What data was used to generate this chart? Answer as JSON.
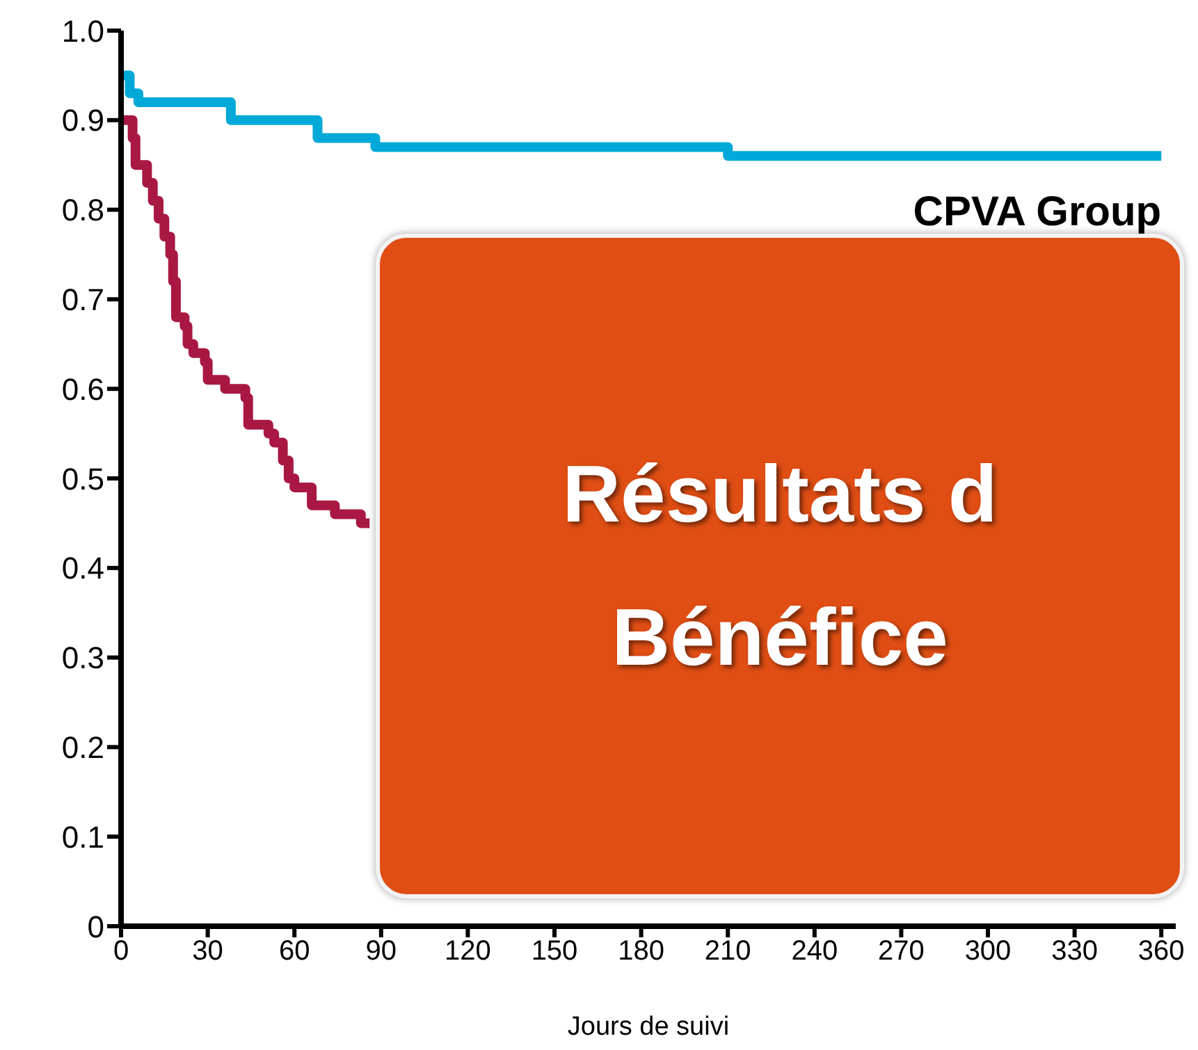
{
  "chart_data": {
    "type": "step",
    "xlabel": "Jours de suivi",
    "xlim": [
      0,
      365
    ],
    "ylim": [
      0,
      1
    ],
    "xticks": [
      0,
      30,
      60,
      90,
      120,
      150,
      180,
      210,
      240,
      270,
      300,
      330,
      360
    ],
    "yticks": [
      0,
      0.1,
      0.2,
      0.3,
      0.4,
      0.5,
      0.6,
      0.7,
      0.8,
      0.9,
      {
        "value": 1,
        "label": "1.0"
      }
    ],
    "series": [
      {
        "name": "CPVA Group",
        "color": "#00a9d8",
        "x": [
          0,
          3,
          6,
          38,
          68,
          88,
          210,
          360
        ],
        "values": [
          0.95,
          0.93,
          0.92,
          0.9,
          0.88,
          0.87,
          0.86,
          0.86
        ]
      },
      {
        "color": "#a81843",
        "x": [
          0,
          4,
          5,
          9,
          11,
          13,
          15,
          17,
          18,
          19,
          22,
          23,
          25,
          29,
          30,
          36,
          43,
          44,
          51,
          53,
          56,
          58,
          60,
          66,
          74,
          83,
          86
        ],
        "values": [
          0.9,
          0.88,
          0.85,
          0.83,
          0.81,
          0.79,
          0.77,
          0.75,
          0.72,
          0.68,
          0.67,
          0.65,
          0.64,
          0.63,
          0.61,
          0.6,
          0.59,
          0.56,
          0.55,
          0.54,
          0.52,
          0.5,
          0.49,
          0.47,
          0.46,
          0.45,
          0.45
        ]
      }
    ],
    "annotations": [
      "Résultats d",
      "Bénéfice"
    ]
  }
}
